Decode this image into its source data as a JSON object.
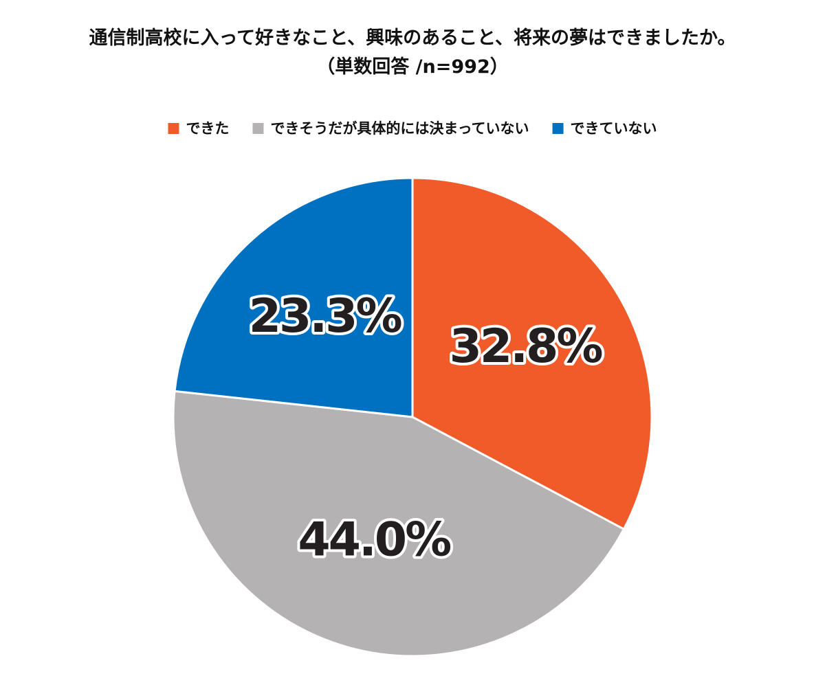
{
  "chart_data": {
    "type": "pie",
    "title": "通信制高校に入って好きなこと、興味のあること、将来の夢はできましたか。",
    "subtitle": "（単数回答 /n=992）",
    "categories": [
      "できた",
      "できそうだが具体的には決まっていない",
      "できていない"
    ],
    "values": [
      32.8,
      44.0,
      23.3
    ],
    "value_labels": [
      "32.8%",
      "44.0%",
      "23.3%"
    ],
    "colors": [
      "#f15a29",
      "#b5b2b4",
      "#0070c0"
    ],
    "legend": "top"
  }
}
